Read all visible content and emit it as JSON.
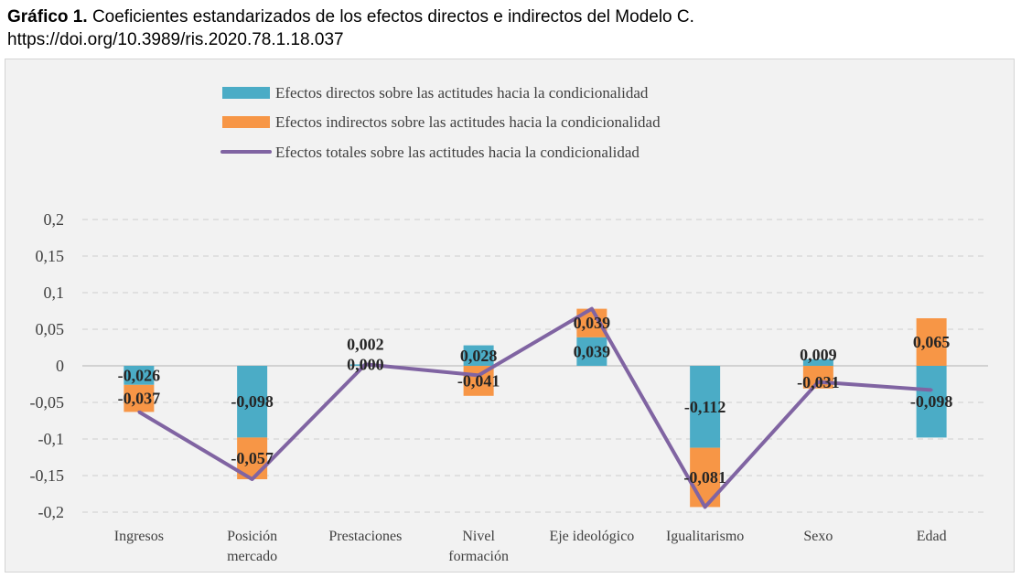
{
  "caption": {
    "label": "Gráfico 1.",
    "title": "Coeficientes estandarizados de los efectos directos e indirectos del Modelo C.",
    "doi": "https://doi.org/10.3989/ris.2020.78.1.18.037"
  },
  "chart_data": {
    "type": "bar",
    "stacked": true,
    "categories": [
      [
        "Ingresos"
      ],
      [
        "Posición",
        "mercado"
      ],
      [
        "Prestaciones"
      ],
      [
        "Nivel",
        "formación"
      ],
      [
        "Eje ideológico"
      ],
      [
        "Igualitarismo"
      ],
      [
        "Sexo"
      ],
      [
        "Edad"
      ]
    ],
    "series": [
      {
        "name": "Efectos directos sobre las actitudes hacia la condicionalidad",
        "kind": "bar",
        "color": "#4bacc6",
        "values": [
          -0.026,
          -0.098,
          0.002,
          0.028,
          0.039,
          -0.112,
          0.009,
          -0.098
        ],
        "labels": [
          "-0,026",
          "-0,098",
          "0,002",
          "0,028",
          "0,039",
          "-0,112",
          "0,009",
          "-0,098"
        ]
      },
      {
        "name": "Efectos indirectos sobre las actitudes hacia la condicionalidad",
        "kind": "bar",
        "color": "#f79646",
        "values": [
          -0.037,
          -0.057,
          0.0,
          -0.041,
          0.039,
          -0.081,
          -0.031,
          0.065
        ],
        "labels": [
          "-0,037",
          "-0,057",
          "0,000",
          "-0,041",
          "0,039",
          "-0,081",
          "-0,031",
          "0,065"
        ]
      },
      {
        "name": "Efectos totales sobre las actitudes hacia la condicionalidad",
        "kind": "line",
        "color": "#8064a2",
        "values": [
          -0.063,
          -0.155,
          0.002,
          -0.013,
          0.078,
          -0.193,
          -0.022,
          -0.033
        ]
      }
    ],
    "ylim": [
      -0.2,
      0.2
    ],
    "yticks": [
      0.2,
      0.15,
      0.1,
      0.05,
      0,
      -0.05,
      -0.1,
      -0.15,
      -0.2
    ],
    "ytick_labels": [
      "0,2",
      "0,15",
      "0,1",
      "0,05",
      "0",
      "-0,05",
      "-0,1",
      "-0,15",
      "-0,2"
    ],
    "grid": true,
    "legend_position": "top"
  }
}
